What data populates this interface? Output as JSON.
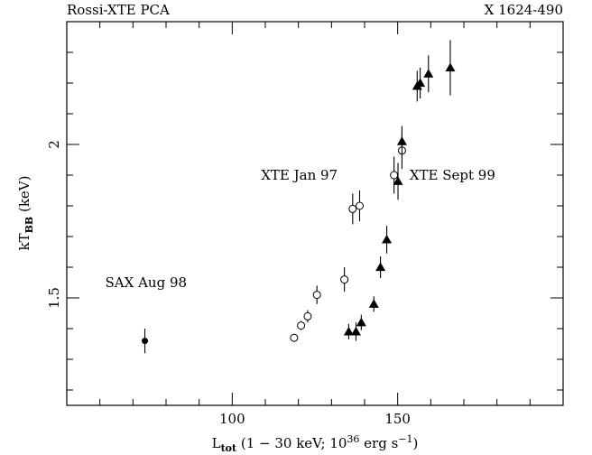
{
  "chart_data": {
    "type": "scatter",
    "title_left": "Rossi-XTE PCA",
    "title_right": "X 1624-490",
    "xlabel": {
      "main": "L",
      "sub": "tot",
      "rest1": " (1 − 30 keV; 10",
      "sup1": "36",
      "rest2": " erg s",
      "sup2": "−1",
      "rest3": ")"
    },
    "ylabel": {
      "main": "kT",
      "sub": "BB",
      "rest": " (keV)"
    },
    "xlim": [
      50,
      200
    ],
    "ylim": [
      1.15,
      2.4
    ],
    "xticks": [
      {
        "v": 100,
        "label": "100"
      },
      {
        "v": 150,
        "label": "150"
      }
    ],
    "yticks": [
      {
        "v": 1.5,
        "label": "1.5"
      },
      {
        "v": 2,
        "label": "2"
      }
    ],
    "xminor_step": 10,
    "yminor_step": 0.1,
    "series": [
      {
        "name": "SAX Aug 98",
        "marker": "filled-circle",
        "points": [
          {
            "x": 73.6,
            "y": 1.36,
            "err": 0.04
          }
        ]
      },
      {
        "name": "XTE Jan 97",
        "marker": "open-circle",
        "points": [
          {
            "x": 118.7,
            "y": 1.37,
            "err": 0.01
          },
          {
            "x": 120.8,
            "y": 1.41,
            "err": 0.015
          },
          {
            "x": 122.8,
            "y": 1.44,
            "err": 0.02
          },
          {
            "x": 125.6,
            "y": 1.51,
            "err": 0.03
          },
          {
            "x": 133.9,
            "y": 1.56,
            "err": 0.04
          },
          {
            "x": 136.4,
            "y": 1.79,
            "err": 0.05
          },
          {
            "x": 138.5,
            "y": 1.8,
            "err": 0.05
          },
          {
            "x": 148.9,
            "y": 1.9,
            "err": 0.06
          },
          {
            "x": 151.3,
            "y": 1.98,
            "err": 0.06
          }
        ]
      },
      {
        "name": "XTE Sept 99",
        "marker": "filled-triangle",
        "points": [
          {
            "x": 135.2,
            "y": 1.39,
            "err": 0.025
          },
          {
            "x": 137.4,
            "y": 1.39,
            "err": 0.03
          },
          {
            "x": 139.0,
            "y": 1.42,
            "err": 0.025
          },
          {
            "x": 142.8,
            "y": 1.48,
            "err": 0.025
          },
          {
            "x": 144.8,
            "y": 1.6,
            "err": 0.035
          },
          {
            "x": 146.7,
            "y": 1.69,
            "err": 0.045
          },
          {
            "x": 150.1,
            "y": 1.88,
            "err": 0.06
          },
          {
            "x": 151.3,
            "y": 2.01,
            "err": 0.05
          },
          {
            "x": 155.9,
            "y": 2.19,
            "err": 0.05
          },
          {
            "x": 156.8,
            "y": 2.2,
            "err": 0.05
          },
          {
            "x": 159.3,
            "y": 2.23,
            "err": 0.06
          },
          {
            "x": 165.9,
            "y": 2.25,
            "err": 0.09
          }
        ]
      }
    ],
    "annotations": [
      {
        "text": "SAX Aug 98",
        "x": 61.6,
        "y": 1.535
      },
      {
        "text": "XTE Jan 97",
        "x": 108.7,
        "y": 1.885
      },
      {
        "text": "XTE Sept 99",
        "x": 153.6,
        "y": 1.885
      }
    ]
  }
}
